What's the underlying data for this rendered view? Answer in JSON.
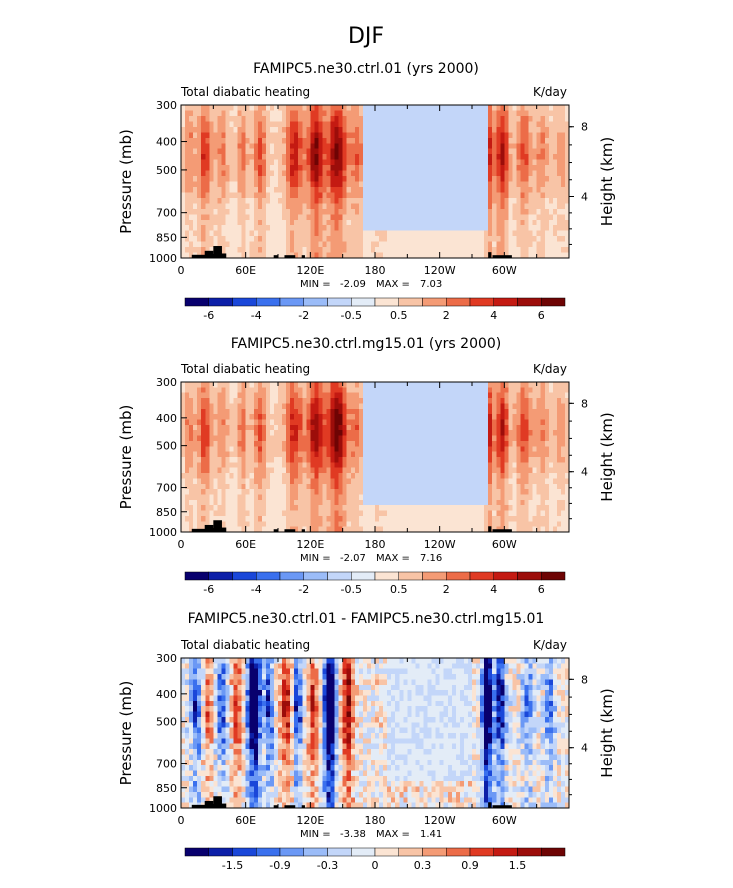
{
  "figure": {
    "suptitle": "DJF"
  },
  "colors": {
    "black": "#000000",
    "white": "#ffffff"
  },
  "chart_data": [
    {
      "type": "heatmap",
      "title": "FAMIPC5.ne30.ctrl.01 (yrs 2000)",
      "left_label": "Total diabatic heating",
      "right_label": "K/day",
      "xlabel": "",
      "ylabel": "Pressure (mb)",
      "y2label": "Height (km)",
      "x_ticks": [
        "0",
        "60E",
        "120E",
        "180",
        "120W",
        "60W"
      ],
      "x_tick_values": [
        0,
        60,
        120,
        180,
        240,
        300
      ],
      "xlim": [
        0,
        360
      ],
      "y_ticks": [
        "300",
        "400",
        "500",
        "700",
        "850",
        "1000"
      ],
      "y_tick_values": [
        300,
        400,
        500,
        700,
        850,
        1000
      ],
      "ylim": [
        1000,
        300
      ],
      "y2_ticks": [
        "8",
        "4"
      ],
      "y2_tick_values": [
        8,
        4
      ],
      "min_label": "MIN =",
      "min_value": "-2.09",
      "max_label": "MAX =",
      "max_value": "7.03",
      "colorbar": {
        "labels": [
          "-6",
          "-4",
          "-2",
          "-0.5",
          "0.5",
          "2",
          "4",
          "6"
        ],
        "colors": [
          "#08006e",
          "#0c1fa8",
          "#1a47d9",
          "#3a70ee",
          "#6b98f5",
          "#9bbcf8",
          "#c3d6f9",
          "#e3ecf7",
          "#fbe4d3",
          "#f8c4a6",
          "#f49b75",
          "#ec6c48",
          "#e03a23",
          "#c41a12",
          "#9c0d0a",
          "#6e0404"
        ]
      },
      "field": {
        "base": 0.65,
        "bands": [
          {
            "lon": 8,
            "w": 5,
            "amp": 1.2
          },
          {
            "lon": 22,
            "w": 6,
            "amp": 2.4
          },
          {
            "lon": 38,
            "w": 6,
            "amp": 1.3
          },
          {
            "lon": 57,
            "w": 4,
            "amp": 1.6
          },
          {
            "lon": 73,
            "w": 6,
            "amp": 1.9
          },
          {
            "lon": 105,
            "w": 8,
            "amp": 2.7
          },
          {
            "lon": 125,
            "w": 8,
            "amp": 3.6
          },
          {
            "lon": 145,
            "w": 9,
            "amp": 3.8
          },
          {
            "lon": 163,
            "w": 6,
            "amp": 1.7
          },
          {
            "lon": 183,
            "w": 7,
            "amp": 1.2
          },
          {
            "lon": 286,
            "w": 4,
            "amp": 2.6
          },
          {
            "lon": 298,
            "w": 6,
            "amp": 3.1
          },
          {
            "lon": 318,
            "w": 7,
            "amp": 2.0
          },
          {
            "lon": 335,
            "w": 6,
            "amp": 1.2
          },
          {
            "lon": 352,
            "w": 6,
            "amp": 1.0
          }
        ],
        "cool_region": {
          "from": 168,
          "to": 284,
          "value": -1.6
        },
        "noise": 0.35,
        "seed": 11
      },
      "terrain": [
        {
          "lon": 10,
          "width": 16,
          "p": 975
        },
        {
          "lon": 22,
          "width": 8,
          "p": 945
        },
        {
          "lon": 30,
          "width": 8,
          "p": 910
        },
        {
          "lon": 37,
          "width": 5,
          "p": 965
        },
        {
          "lon": 86,
          "width": 4,
          "p": 978
        },
        {
          "lon": 96,
          "width": 10,
          "p": 978
        },
        {
          "lon": 112,
          "width": 3,
          "p": 978
        },
        {
          "lon": 285,
          "width": 3,
          "p": 955
        },
        {
          "lon": 289,
          "width": 18,
          "p": 978
        }
      ]
    },
    {
      "type": "heatmap",
      "title": "FAMIPC5.ne30.ctrl.mg15.01 (yrs 2000)",
      "left_label": "Total diabatic heating",
      "right_label": "K/day",
      "xlabel": "",
      "ylabel": "Pressure (mb)",
      "y2label": "Height (km)",
      "x_ticks": [
        "0",
        "60E",
        "120E",
        "180",
        "120W",
        "60W"
      ],
      "x_tick_values": [
        0,
        60,
        120,
        180,
        240,
        300
      ],
      "xlim": [
        0,
        360
      ],
      "y_ticks": [
        "300",
        "400",
        "500",
        "700",
        "850",
        "1000"
      ],
      "y_tick_values": [
        300,
        400,
        500,
        700,
        850,
        1000
      ],
      "ylim": [
        1000,
        300
      ],
      "y2_ticks": [
        "8",
        "4"
      ],
      "y2_tick_values": [
        8,
        4
      ],
      "min_label": "MIN =",
      "min_value": "-2.07",
      "max_label": "MAX =",
      "max_value": "7.16",
      "colorbar": {
        "labels": [
          "-6",
          "-4",
          "-2",
          "-0.5",
          "0.5",
          "2",
          "4",
          "6"
        ],
        "colors": [
          "#08006e",
          "#0c1fa8",
          "#1a47d9",
          "#3a70ee",
          "#6b98f5",
          "#9bbcf8",
          "#c3d6f9",
          "#e3ecf7",
          "#fbe4d3",
          "#f8c4a6",
          "#f49b75",
          "#ec6c48",
          "#e03a23",
          "#c41a12",
          "#9c0d0a",
          "#6e0404"
        ]
      },
      "field": {
        "base": 0.65,
        "bands": [
          {
            "lon": 8,
            "w": 5,
            "amp": 1.3
          },
          {
            "lon": 22,
            "w": 6,
            "amp": 2.3
          },
          {
            "lon": 38,
            "w": 6,
            "amp": 1.2
          },
          {
            "lon": 57,
            "w": 4,
            "amp": 1.7
          },
          {
            "lon": 73,
            "w": 6,
            "amp": 2.0
          },
          {
            "lon": 105,
            "w": 8,
            "amp": 2.6
          },
          {
            "lon": 125,
            "w": 8,
            "amp": 3.4
          },
          {
            "lon": 145,
            "w": 9,
            "amp": 4.2
          },
          {
            "lon": 163,
            "w": 6,
            "amp": 1.5
          },
          {
            "lon": 183,
            "w": 7,
            "amp": 1.1
          },
          {
            "lon": 286,
            "w": 4,
            "amp": 2.7
          },
          {
            "lon": 298,
            "w": 6,
            "amp": 3.0
          },
          {
            "lon": 318,
            "w": 7,
            "amp": 2.1
          },
          {
            "lon": 335,
            "w": 6,
            "amp": 1.3
          },
          {
            "lon": 352,
            "w": 6,
            "amp": 1.0
          }
        ],
        "cool_region": {
          "from": 168,
          "to": 284,
          "value": -1.6
        },
        "noise": 0.35,
        "seed": 23
      },
      "terrain": [
        {
          "lon": 10,
          "width": 16,
          "p": 975
        },
        {
          "lon": 22,
          "width": 8,
          "p": 945
        },
        {
          "lon": 30,
          "width": 8,
          "p": 910
        },
        {
          "lon": 37,
          "width": 5,
          "p": 965
        },
        {
          "lon": 86,
          "width": 4,
          "p": 978
        },
        {
          "lon": 96,
          "width": 10,
          "p": 978
        },
        {
          "lon": 112,
          "width": 3,
          "p": 978
        },
        {
          "lon": 285,
          "width": 3,
          "p": 955
        },
        {
          "lon": 289,
          "width": 18,
          "p": 978
        }
      ]
    },
    {
      "type": "heatmap",
      "title": "FAMIPC5.ne30.ctrl.01 - FAMIPC5.ne30.ctrl.mg15.01",
      "left_label": "Total diabatic heating",
      "right_label": "K/day",
      "xlabel": "",
      "ylabel": "Pressure (mb)",
      "y2label": "Height (km)",
      "x_ticks": [
        "0",
        "60E",
        "120E",
        "180",
        "120W",
        "60W"
      ],
      "x_tick_values": [
        0,
        60,
        120,
        180,
        240,
        300
      ],
      "xlim": [
        0,
        360
      ],
      "y_ticks": [
        "300",
        "400",
        "500",
        "700",
        "850",
        "1000"
      ],
      "y_tick_values": [
        300,
        400,
        500,
        700,
        850,
        1000
      ],
      "ylim": [
        1000,
        300
      ],
      "y2_ticks": [
        "8",
        "4"
      ],
      "y2_tick_values": [
        8,
        4
      ],
      "min_label": "MIN =",
      "min_value": "-3.38",
      "max_label": "MAX =",
      "max_value": "1.41",
      "colorbar": {
        "labels": [
          "-1.5",
          "-0.9",
          "-0.3",
          "0",
          "0.3",
          "0.9",
          "1.5"
        ],
        "colors": [
          "#08006e",
          "#0c1fa8",
          "#1a47d9",
          "#3a70ee",
          "#6b98f5",
          "#9bbcf8",
          "#c3d6f9",
          "#e3ecf7",
          "#fbe4d3",
          "#f8c4a6",
          "#f49b75",
          "#ec6c48",
          "#e03a23",
          "#c41a12",
          "#9c0d0a",
          "#6e0404"
        ]
      },
      "field": {
        "base": 0.0,
        "bands": [
          {
            "lon": 14,
            "w": 5,
            "amp": -0.9
          },
          {
            "lon": 25,
            "w": 4,
            "amp": 0.6
          },
          {
            "lon": 38,
            "w": 5,
            "amp": -0.8
          },
          {
            "lon": 52,
            "w": 5,
            "amp": 0.7
          },
          {
            "lon": 68,
            "w": 6,
            "amp": -1.8
          },
          {
            "lon": 82,
            "w": 4,
            "amp": -1.0
          },
          {
            "lon": 98,
            "w": 6,
            "amp": 0.9
          },
          {
            "lon": 108,
            "w": 4,
            "amp": -1.1
          },
          {
            "lon": 122,
            "w": 5,
            "amp": 0.8
          },
          {
            "lon": 138,
            "w": 5,
            "amp": -2.2
          },
          {
            "lon": 155,
            "w": 5,
            "amp": 1.2
          },
          {
            "lon": 200,
            "w": 12,
            "amp": 0.3
          },
          {
            "lon": 255,
            "w": 10,
            "amp": 0.4
          },
          {
            "lon": 284,
            "w": 4,
            "amp": -2.4
          },
          {
            "lon": 296,
            "w": 5,
            "amp": -1.2
          },
          {
            "lon": 322,
            "w": 6,
            "amp": -0.6
          },
          {
            "lon": 342,
            "w": 5,
            "amp": -0.7
          }
        ],
        "cool_region": {
          "from": 190,
          "to": 270,
          "value": -0.2
        },
        "noise": 0.45,
        "seed": 37
      },
      "terrain": [
        {
          "lon": 10,
          "width": 16,
          "p": 975
        },
        {
          "lon": 22,
          "width": 8,
          "p": 945
        },
        {
          "lon": 30,
          "width": 8,
          "p": 910
        },
        {
          "lon": 37,
          "width": 5,
          "p": 965
        },
        {
          "lon": 86,
          "width": 4,
          "p": 978
        },
        {
          "lon": 96,
          "width": 10,
          "p": 978
        },
        {
          "lon": 112,
          "width": 3,
          "p": 978
        },
        {
          "lon": 285,
          "width": 3,
          "p": 955
        },
        {
          "lon": 289,
          "width": 18,
          "p": 978
        }
      ]
    }
  ]
}
